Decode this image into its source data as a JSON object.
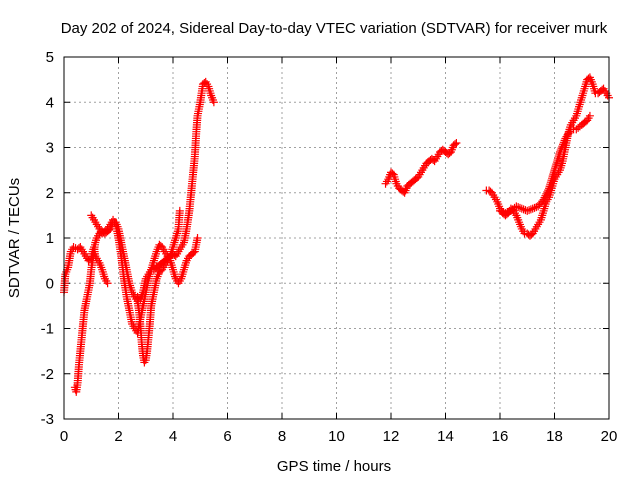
{
  "chart_data": {
    "type": "scatter",
    "title": "Day 202 of 2024, Sidereal Day-to-day VTEC variation (SDTVAR) for receiver murk",
    "xlabel": "GPS time / hours",
    "ylabel": "SDTVAR / TECUs",
    "xlim": [
      0,
      20
    ],
    "ylim": [
      -3,
      5
    ],
    "x_ticks": [
      "0",
      "2",
      "4",
      "6",
      "8",
      "10",
      "12",
      "14",
      "16",
      "18",
      "20"
    ],
    "y_ticks": [
      "-3",
      "-2",
      "-1",
      "0",
      "1",
      "2",
      "3",
      "4",
      "5"
    ],
    "grid": true,
    "marker": "+",
    "color": "#ff0000",
    "series": [
      {
        "name": "SDTVAR",
        "segments": [
          [
            [
              0.0,
              -0.2
            ],
            [
              0.05,
              0.2
            ],
            [
              0.15,
              0.35
            ],
            [
              0.25,
              0.7
            ],
            [
              0.35,
              0.8
            ],
            [
              0.5,
              0.75
            ],
            [
              0.6,
              0.8
            ],
            [
              0.7,
              0.7
            ],
            [
              0.8,
              0.6
            ],
            [
              0.9,
              0.5
            ],
            [
              1.0,
              0.55
            ],
            [
              1.05,
              0.7
            ],
            [
              1.1,
              0.8
            ],
            [
              1.15,
              0.6
            ],
            [
              1.2,
              0.55
            ],
            [
              1.3,
              0.45
            ],
            [
              1.4,
              0.3
            ],
            [
              1.5,
              0.1
            ],
            [
              1.6,
              0.0
            ]
          ],
          [
            [
              0.4,
              -2.3
            ],
            [
              0.45,
              -2.4
            ],
            [
              0.5,
              -2.2
            ],
            [
              0.55,
              -1.8
            ],
            [
              0.6,
              -1.5
            ],
            [
              0.65,
              -1.2
            ],
            [
              0.7,
              -0.9
            ],
            [
              0.75,
              -0.6
            ],
            [
              0.85,
              -0.3
            ],
            [
              0.95,
              0.0
            ],
            [
              1.0,
              0.3
            ],
            [
              1.05,
              0.5
            ],
            [
              1.1,
              0.7
            ],
            [
              1.15,
              0.9
            ],
            [
              1.2,
              1.0
            ],
            [
              1.3,
              1.1
            ],
            [
              1.4,
              1.15
            ],
            [
              1.5,
              1.1
            ],
            [
              1.6,
              1.15
            ],
            [
              1.7,
              1.2
            ],
            [
              1.8,
              1.35
            ],
            [
              1.9,
              1.35
            ],
            [
              2.0,
              1.2
            ],
            [
              2.1,
              0.9
            ],
            [
              2.2,
              0.6
            ],
            [
              2.3,
              0.3
            ],
            [
              2.4,
              0.0
            ],
            [
              2.5,
              -0.2
            ],
            [
              2.6,
              -0.3
            ],
            [
              2.7,
              -0.4
            ],
            [
              2.75,
              -0.6
            ],
            [
              2.8,
              -0.9
            ],
            [
              2.85,
              -1.3
            ],
            [
              2.9,
              -1.6
            ],
            [
              2.95,
              -1.75
            ],
            [
              3.0,
              -1.7
            ],
            [
              3.05,
              -1.5
            ],
            [
              3.1,
              -1.2
            ],
            [
              3.15,
              -0.9
            ],
            [
              3.2,
              -0.5
            ],
            [
              3.3,
              -0.2
            ],
            [
              3.4,
              0.1
            ],
            [
              3.5,
              0.25
            ],
            [
              3.6,
              0.3
            ],
            [
              3.7,
              0.4
            ],
            [
              3.8,
              0.5
            ],
            [
              3.9,
              0.6
            ],
            [
              4.0,
              0.8
            ],
            [
              4.1,
              1.0
            ],
            [
              4.2,
              1.2
            ],
            [
              4.25,
              1.6
            ]
          ],
          [
            [
              1.0,
              1.5
            ],
            [
              1.1,
              1.4
            ],
            [
              1.2,
              1.3
            ],
            [
              1.3,
              1.2
            ],
            [
              1.4,
              1.1
            ],
            [
              1.5,
              1.15
            ],
            [
              1.6,
              1.2
            ],
            [
              1.7,
              1.3
            ],
            [
              1.8,
              1.4
            ],
            [
              1.9,
              1.3
            ],
            [
              2.0,
              1.0
            ],
            [
              2.1,
              0.6
            ],
            [
              2.2,
              0.1
            ],
            [
              2.3,
              -0.3
            ],
            [
              2.4,
              -0.6
            ],
            [
              2.5,
              -0.9
            ],
            [
              2.6,
              -1.0
            ],
            [
              2.7,
              -1.1
            ],
            [
              2.8,
              -0.8
            ],
            [
              2.9,
              -0.5
            ],
            [
              3.0,
              -0.2
            ],
            [
              3.1,
              0.1
            ],
            [
              3.2,
              0.3
            ],
            [
              3.3,
              0.5
            ],
            [
              3.4,
              0.7
            ],
            [
              3.5,
              0.85
            ],
            [
              3.6,
              0.8
            ],
            [
              3.7,
              0.7
            ],
            [
              3.8,
              0.6
            ],
            [
              3.9,
              0.5
            ],
            [
              4.0,
              0.3
            ],
            [
              4.1,
              0.1
            ],
            [
              4.2,
              0.0
            ],
            [
              4.3,
              0.1
            ],
            [
              4.4,
              0.3
            ],
            [
              4.5,
              0.5
            ],
            [
              4.6,
              0.6
            ],
            [
              4.7,
              0.65
            ],
            [
              4.8,
              0.7
            ],
            [
              4.9,
              1.0
            ]
          ],
          [
            [
              2.6,
              -0.3
            ],
            [
              2.7,
              -0.3
            ],
            [
              2.8,
              -0.35
            ],
            [
              2.9,
              -0.2
            ],
            [
              3.0,
              0.1
            ],
            [
              3.1,
              0.2
            ],
            [
              3.2,
              0.3
            ],
            [
              3.3,
              0.3
            ],
            [
              3.4,
              0.35
            ],
            [
              3.5,
              0.4
            ],
            [
              3.6,
              0.45
            ],
            [
              3.7,
              0.5
            ],
            [
              3.8,
              0.55
            ],
            [
              3.9,
              0.6
            ],
            [
              4.0,
              0.65
            ],
            [
              4.1,
              0.6
            ],
            [
              4.2,
              0.7
            ],
            [
              4.3,
              0.8
            ],
            [
              4.4,
              0.9
            ],
            [
              4.5,
              1.2
            ],
            [
              4.6,
              1.6
            ],
            [
              4.7,
              2.2
            ],
            [
              4.8,
              2.8
            ],
            [
              4.85,
              3.3
            ],
            [
              4.9,
              3.7
            ],
            [
              5.0,
              4.0
            ],
            [
              5.05,
              4.2
            ],
            [
              5.1,
              4.4
            ],
            [
              5.2,
              4.45
            ],
            [
              5.3,
              4.35
            ],
            [
              5.4,
              4.15
            ],
            [
              5.5,
              4.0
            ]
          ],
          [
            [
              11.8,
              2.2
            ],
            [
              11.9,
              2.3
            ],
            [
              12.0,
              2.45
            ],
            [
              12.1,
              2.4
            ],
            [
              12.2,
              2.2
            ],
            [
              12.3,
              2.1
            ],
            [
              12.4,
              2.05
            ],
            [
              12.5,
              2.0
            ],
            [
              12.6,
              2.15
            ],
            [
              12.7,
              2.2
            ],
            [
              12.8,
              2.25
            ],
            [
              12.9,
              2.3
            ],
            [
              13.0,
              2.35
            ],
            [
              13.1,
              2.45
            ],
            [
              13.2,
              2.55
            ],
            [
              13.3,
              2.65
            ],
            [
              13.4,
              2.7
            ],
            [
              13.5,
              2.75
            ],
            [
              13.6,
              2.7
            ],
            [
              13.7,
              2.8
            ],
            [
              13.8,
              2.9
            ],
            [
              13.9,
              2.95
            ],
            [
              14.0,
              2.9
            ],
            [
              14.1,
              2.85
            ],
            [
              14.2,
              2.9
            ],
            [
              14.3,
              3.05
            ],
            [
              14.4,
              3.1
            ]
          ],
          [
            [
              15.5,
              2.05
            ],
            [
              15.6,
              2.05
            ],
            [
              15.7,
              2.0
            ],
            [
              15.8,
              1.9
            ],
            [
              15.9,
              1.8
            ],
            [
              16.0,
              1.65
            ],
            [
              16.1,
              1.55
            ],
            [
              16.2,
              1.5
            ],
            [
              16.3,
              1.55
            ],
            [
              16.4,
              1.65
            ],
            [
              16.5,
              1.6
            ],
            [
              16.6,
              1.5
            ],
            [
              16.7,
              1.35
            ],
            [
              16.8,
              1.2
            ],
            [
              16.9,
              1.1
            ],
            [
              17.0,
              1.1
            ],
            [
              17.1,
              1.05
            ],
            [
              17.2,
              1.1
            ],
            [
              17.3,
              1.2
            ],
            [
              17.4,
              1.3
            ],
            [
              17.5,
              1.4
            ],
            [
              17.6,
              1.6
            ],
            [
              17.7,
              1.8
            ],
            [
              17.8,
              1.9
            ],
            [
              17.9,
              2.1
            ],
            [
              18.0,
              2.3
            ],
            [
              18.1,
              2.4
            ],
            [
              18.2,
              2.5
            ],
            [
              18.3,
              2.7
            ],
            [
              18.4,
              3.0
            ],
            [
              18.5,
              3.3
            ],
            [
              18.6,
              3.5
            ],
            [
              18.7,
              3.6
            ],
            [
              18.8,
              3.7
            ],
            [
              18.9,
              3.9
            ],
            [
              19.0,
              4.1
            ],
            [
              19.1,
              4.3
            ],
            [
              19.2,
              4.5
            ],
            [
              19.3,
              4.55
            ],
            [
              19.4,
              4.4
            ],
            [
              19.5,
              4.2
            ],
            [
              19.6,
              4.2
            ],
            [
              19.7,
              4.25
            ],
            [
              19.8,
              4.3
            ],
            [
              19.9,
              4.2
            ],
            [
              20.0,
              4.1
            ]
          ],
          [
            [
              16.0,
              1.6
            ],
            [
              16.2,
              1.55
            ],
            [
              16.4,
              1.6
            ],
            [
              16.6,
              1.7
            ],
            [
              16.8,
              1.65
            ],
            [
              17.0,
              1.6
            ],
            [
              17.2,
              1.65
            ],
            [
              17.4,
              1.7
            ],
            [
              17.6,
              1.85
            ],
            [
              17.8,
              2.1
            ],
            [
              18.0,
              2.5
            ],
            [
              18.2,
              2.9
            ],
            [
              18.4,
              3.2
            ],
            [
              18.6,
              3.4
            ],
            [
              18.8,
              3.4
            ],
            [
              19.0,
              3.5
            ],
            [
              19.1,
              3.55
            ],
            [
              19.2,
              3.6
            ],
            [
              19.3,
              3.7
            ]
          ]
        ]
      }
    ]
  }
}
